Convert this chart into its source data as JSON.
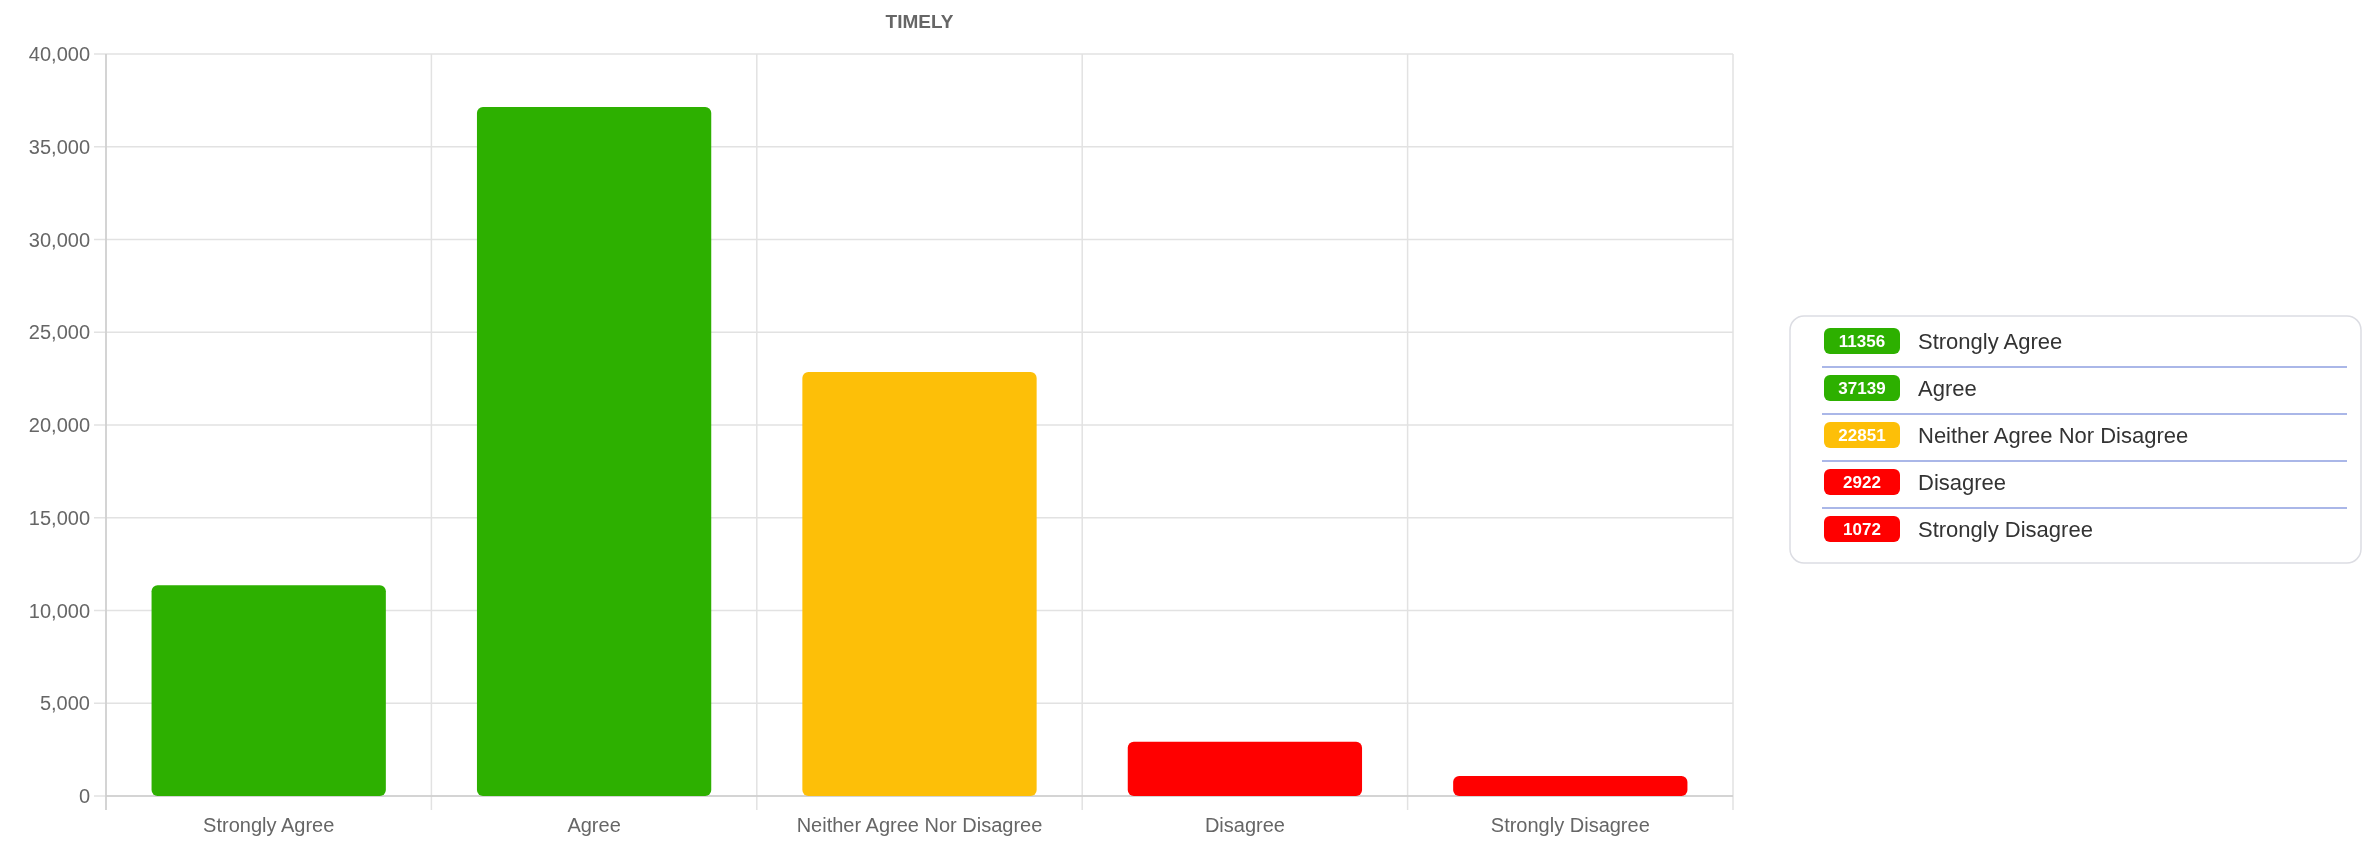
{
  "chart_data": [
    {
      "type": "bar",
      "title": "TIMELY",
      "categories": [
        "Strongly Agree",
        "Agree",
        "Neither Agree Nor Disagree",
        "Disagree",
        "Strongly Disagree"
      ],
      "values": [
        11356,
        37139,
        22851,
        2922,
        1072
      ],
      "colors": [
        "#2db000",
        "#2db000",
        "#fdbf08",
        "#ff0000",
        "#ff0000"
      ],
      "ylim": [
        0,
        40000
      ],
      "yticks": [
        {
          "value": 0,
          "label": "0"
        },
        {
          "value": 5000,
          "label": "5,000"
        },
        {
          "value": 10000,
          "label": "10,000"
        },
        {
          "value": 15000,
          "label": "15,000"
        },
        {
          "value": 20000,
          "label": "20,000"
        },
        {
          "value": 25000,
          "label": "25,000"
        },
        {
          "value": 30000,
          "label": "30,000"
        },
        {
          "value": 35000,
          "label": "35,000"
        },
        {
          "value": 40000,
          "label": "40,000"
        }
      ],
      "grid": true
    },
    {
      "type": "other",
      "categories": [
        "Strongly Agree",
        "Agree",
        "Neither Agree Nor Disagree",
        "Disagree",
        "Strongly Disagree"
      ],
      "values": [
        11356,
        37139,
        22851,
        2922,
        1072
      ],
      "colors": [
        "#2db000",
        "#2db000",
        "#fdbf08",
        "#ff0000",
        "#ff0000"
      ],
      "data_labels": true
    }
  ]
}
